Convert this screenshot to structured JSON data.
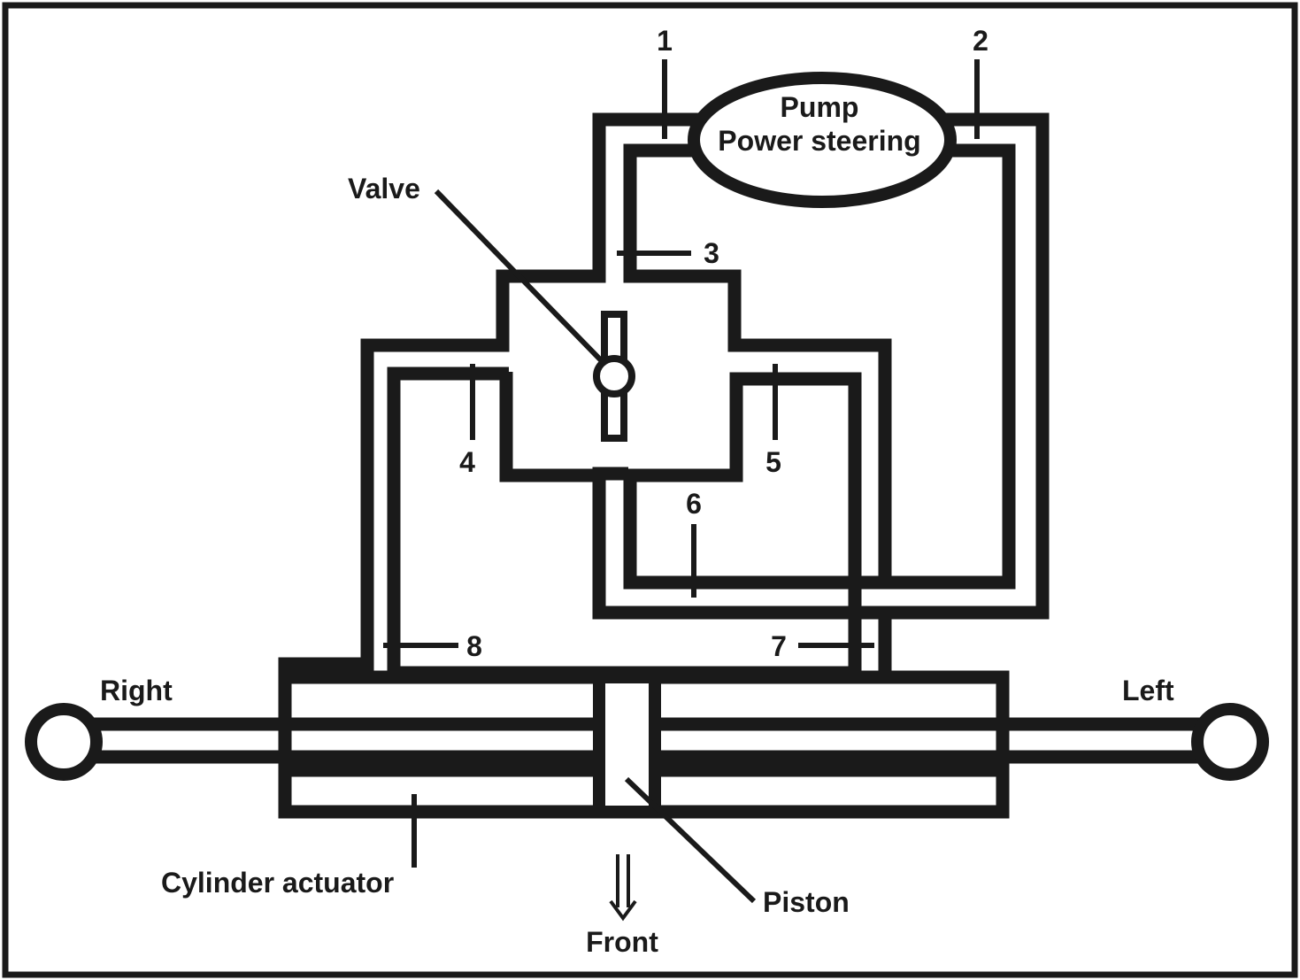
{
  "labels": {
    "pump_line1": "Pump",
    "pump_line2": "Power steering",
    "valve": "Valve",
    "right": "Right",
    "left": "Left",
    "cylinder": "Cylinder actuator",
    "piston": "Piston",
    "front": "Front"
  },
  "numbers": [
    "1",
    "2",
    "3",
    "4",
    "5",
    "6",
    "7",
    "8"
  ]
}
